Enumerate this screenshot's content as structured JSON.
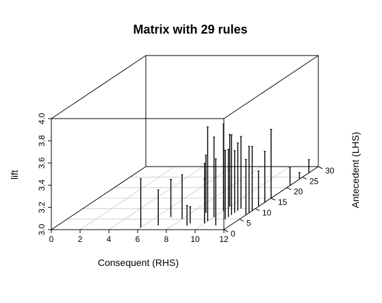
{
  "chart_data": {
    "type": "bar",
    "subtype": "3d-matrix-scatter",
    "title": "Matrix with 29 rules",
    "xlabel": "Consequent (RHS)",
    "ylabel": "Antecedent (LHS)",
    "zlabel": "lift",
    "xlim": [
      0,
      12
    ],
    "ylim": [
      0,
      30
    ],
    "zlim": [
      3.0,
      4.0
    ],
    "x_ticks": [
      "0",
      "2",
      "4",
      "6",
      "8",
      "10",
      "12"
    ],
    "y_ticks": [
      "0",
      "5",
      "10",
      "15",
      "20",
      "25",
      "30"
    ],
    "z_ticks": [
      "3.0",
      "3.2",
      "3.4",
      "3.6",
      "3.8",
      "4.0"
    ],
    "grid": true,
    "legend": "none",
    "points": [
      {
        "x": 6,
        "y": 1,
        "z": 3.44
      },
      {
        "x": 7,
        "y": 2,
        "z": 3.32
      },
      {
        "x": 7,
        "y": 6,
        "z": 3.34
      },
      {
        "x": 8,
        "y": 5,
        "z": 3.4
      },
      {
        "x": 9,
        "y": 8,
        "z": 3.52
      },
      {
        "x": 9,
        "y": 2,
        "z": 3.18
      },
      {
        "x": 9,
        "y": 3,
        "z": 3.15
      },
      {
        "x": 10,
        "y": 3,
        "z": 3.4
      },
      {
        "x": 10,
        "y": 11,
        "z": 3.65
      },
      {
        "x": 10,
        "y": 9,
        "z": 3.78
      },
      {
        "x": 10,
        "y": 6,
        "z": 3.72
      },
      {
        "x": 10,
        "y": 4,
        "z": 3.85
      },
      {
        "x": 10,
        "y": 3,
        "z": 3.54
      },
      {
        "x": 11,
        "y": 2,
        "z": 3.6
      },
      {
        "x": 11,
        "y": 8,
        "z": 3.56
      },
      {
        "x": 11,
        "y": 10,
        "z": 3.65
      },
      {
        "x": 11,
        "y": 5,
        "z": 3.62
      },
      {
        "x": 11,
        "y": 6,
        "z": 3.61
      },
      {
        "x": 11,
        "y": 7,
        "z": 3.72
      },
      {
        "x": 11,
        "y": 9,
        "z": 3.61
      },
      {
        "x": 12,
        "y": 8,
        "z": 3.6
      },
      {
        "x": 12,
        "y": 9,
        "z": 3.58
      },
      {
        "x": 12,
        "y": 13,
        "z": 3.46
      },
      {
        "x": 12,
        "y": 15,
        "z": 3.62
      },
      {
        "x": 12,
        "y": 11,
        "z": 3.32
      },
      {
        "x": 12,
        "y": 21,
        "z": 3.16
      },
      {
        "x": 12,
        "y": 24,
        "z": 3.06
      },
      {
        "x": 12,
        "y": 27,
        "z": 3.12
      },
      {
        "x": 12,
        "y": 7,
        "z": 3.5
      }
    ]
  }
}
